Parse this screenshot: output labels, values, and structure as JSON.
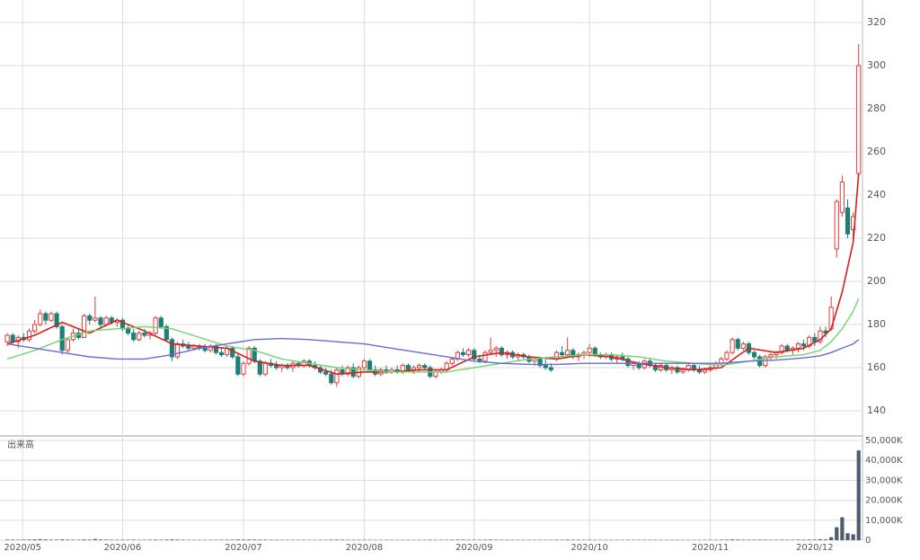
{
  "chart_data": {
    "type": "candlestick",
    "volume_label": "出来高",
    "up_color": "#e03c3c",
    "down_color": "#1f7f76",
    "volume_color": "#4d5d70",
    "grid": true,
    "xlim": [
      -0.5,
      155.7
    ],
    "xticks": [
      {
        "value": 2.8,
        "label": "2020/05"
      },
      {
        "value": 21,
        "label": "2020/06"
      },
      {
        "value": 43,
        "label": "2020/07"
      },
      {
        "value": 65,
        "label": "2020/08"
      },
      {
        "value": 85,
        "label": "2020/09"
      },
      {
        "value": 106,
        "label": "2020/10"
      },
      {
        "value": 128,
        "label": "2020/11"
      },
      {
        "value": 147,
        "label": "2020/12"
      }
    ],
    "ylim": [
      128.75,
      330.4
    ],
    "yticks": [
      140,
      160,
      180,
      200,
      220,
      240,
      260,
      280,
      300,
      320
    ],
    "volume_ylim": [
      0,
      51350
    ],
    "volume_yticks": [
      0,
      {
        "value": 10000,
        "label": "10,000K"
      },
      {
        "value": 20000,
        "label": "20,000K"
      },
      {
        "value": 30000,
        "label": "30,000K"
      },
      {
        "value": 40000,
        "label": "40,000K"
      },
      {
        "value": 50000,
        "label": "50,000K"
      }
    ],
    "ohlc": [
      [
        172,
        176,
        170,
        175
      ],
      [
        175,
        176,
        171,
        172
      ],
      [
        172,
        175,
        169,
        174
      ],
      [
        174,
        176,
        172,
        173
      ],
      [
        173,
        178,
        172,
        177
      ],
      [
        177,
        182,
        176,
        180
      ],
      [
        180,
        187,
        179,
        185
      ],
      [
        185,
        186,
        180,
        182
      ],
      [
        182,
        186,
        181,
        185
      ],
      [
        185,
        186,
        178,
        179
      ],
      [
        179,
        180,
        166,
        168
      ],
      [
        168,
        174,
        167,
        173
      ],
      [
        173,
        178,
        172,
        176
      ],
      [
        176,
        178,
        173,
        174
      ],
      [
        174,
        185,
        174,
        184
      ],
      [
        184,
        185,
        180,
        182
      ],
      [
        182,
        193,
        181,
        183
      ],
      [
        183,
        184,
        178,
        180
      ],
      [
        180,
        184,
        179,
        183
      ],
      [
        183,
        184,
        180,
        181
      ],
      [
        181,
        183,
        179,
        182
      ],
      [
        182,
        183,
        177,
        178
      ],
      [
        178,
        180,
        175,
        176
      ],
      [
        176,
        178,
        172,
        173
      ],
      [
        173,
        177,
        172,
        176
      ],
      [
        176,
        178,
        174,
        175
      ],
      [
        175,
        177,
        173,
        176
      ],
      [
        176,
        184,
        175,
        183
      ],
      [
        183,
        184,
        178,
        179
      ],
      [
        179,
        180,
        172,
        173
      ],
      [
        173,
        174,
        163,
        165
      ],
      [
        165,
        172,
        164,
        171
      ],
      [
        171,
        173,
        169,
        170
      ],
      [
        170,
        172,
        168,
        169
      ],
      [
        169,
        171,
        168,
        170
      ],
      [
        170,
        171,
        168,
        169
      ],
      [
        169,
        171,
        167,
        168
      ],
      [
        168,
        171,
        167,
        170
      ],
      [
        170,
        171,
        166,
        167
      ],
      [
        167,
        169,
        165,
        166
      ],
      [
        166,
        170,
        165,
        169
      ],
      [
        169,
        170,
        164,
        165
      ],
      [
        165,
        167,
        156,
        157
      ],
      [
        157,
        163,
        156,
        162
      ],
      [
        162,
        170,
        161,
        169
      ],
      [
        169,
        170,
        162,
        163
      ],
      [
        163,
        164,
        156,
        157
      ],
      [
        157,
        163,
        156,
        162
      ],
      [
        162,
        164,
        160,
        161
      ],
      [
        161,
        163,
        159,
        160
      ],
      [
        160,
        162,
        158,
        161
      ],
      [
        161,
        162,
        159,
        160
      ],
      [
        160,
        163,
        158,
        162
      ],
      [
        162,
        163,
        160,
        161
      ],
      [
        161,
        164,
        160,
        163
      ],
      [
        163,
        164,
        160,
        161
      ],
      [
        161,
        163,
        159,
        160
      ],
      [
        160,
        161,
        157,
        158
      ],
      [
        158,
        160,
        156,
        157
      ],
      [
        157,
        159,
        152,
        153
      ],
      [
        153,
        160,
        151,
        159
      ],
      [
        159,
        161,
        156,
        157
      ],
      [
        157,
        161,
        156,
        160
      ],
      [
        160,
        162,
        155,
        156
      ],
      [
        156,
        161,
        155,
        160
      ],
      [
        160,
        164,
        159,
        163
      ],
      [
        163,
        164,
        158,
        159
      ],
      [
        159,
        161,
        156,
        157
      ],
      [
        157,
        160,
        156,
        159
      ],
      [
        159,
        161,
        157,
        158
      ],
      [
        158,
        160,
        157,
        159
      ],
      [
        159,
        161,
        157,
        158
      ],
      [
        158,
        162,
        157,
        161
      ],
      [
        161,
        162,
        158,
        159
      ],
      [
        159,
        161,
        157,
        160
      ],
      [
        160,
        162,
        158,
        161
      ],
      [
        161,
        162,
        159,
        160
      ],
      [
        160,
        161,
        155,
        156
      ],
      [
        156,
        159,
        155,
        158
      ],
      [
        158,
        160,
        157,
        159
      ],
      [
        159,
        163,
        158,
        162
      ],
      [
        162,
        165,
        161,
        164
      ],
      [
        164,
        168,
        163,
        167
      ],
      [
        167,
        169,
        165,
        166
      ],
      [
        166,
        169,
        165,
        168
      ],
      [
        168,
        169,
        163,
        164
      ],
      [
        164,
        166,
        162,
        163
      ],
      [
        163,
        168,
        162,
        167
      ],
      [
        167,
        174,
        166,
        168
      ],
      [
        168,
        170,
        165,
        169
      ],
      [
        169,
        170,
        165,
        166
      ],
      [
        166,
        168,
        164,
        167
      ],
      [
        167,
        168,
        164,
        165
      ],
      [
        165,
        167,
        163,
        166
      ],
      [
        166,
        167,
        164,
        165
      ],
      [
        165,
        166,
        162,
        163
      ],
      [
        163,
        165,
        161,
        164
      ],
      [
        164,
        165,
        160,
        161
      ],
      [
        161,
        164,
        159,
        160
      ],
      [
        160,
        162,
        158,
        159
      ],
      [
        164,
        168,
        163,
        167
      ],
      [
        167,
        170,
        165,
        166
      ],
      [
        166,
        174,
        165,
        168
      ],
      [
        168,
        169,
        164,
        165
      ],
      [
        165,
        167,
        163,
        166
      ],
      [
        166,
        168,
        164,
        167
      ],
      [
        167,
        171,
        165,
        169
      ],
      [
        169,
        170,
        165,
        166
      ],
      [
        166,
        167,
        164,
        165
      ],
      [
        165,
        167,
        164,
        166
      ],
      [
        166,
        167,
        163,
        164
      ],
      [
        164,
        166,
        162,
        165
      ],
      [
        165,
        167,
        163,
        164
      ],
      [
        164,
        165,
        160,
        161
      ],
      [
        161,
        163,
        159,
        162
      ],
      [
        162,
        163,
        159,
        160
      ],
      [
        160,
        164,
        159,
        163
      ],
      [
        163,
        164,
        160,
        161
      ],
      [
        161,
        162,
        158,
        159
      ],
      [
        159,
        162,
        158,
        161
      ],
      [
        161,
        162,
        158,
        159
      ],
      [
        159,
        161,
        157,
        160
      ],
      [
        160,
        161,
        157,
        158
      ],
      [
        158,
        160,
        157,
        159
      ],
      [
        159,
        162,
        158,
        161
      ],
      [
        161,
        162,
        158,
        159
      ],
      [
        159,
        161,
        157,
        158
      ],
      [
        158,
        160,
        157,
        159
      ],
      [
        159,
        161,
        158,
        160
      ],
      [
        160,
        163,
        159,
        162
      ],
      [
        162,
        165,
        161,
        164
      ],
      [
        164,
        168,
        163,
        167
      ],
      [
        167,
        174,
        166,
        173
      ],
      [
        173,
        174,
        168,
        169
      ],
      [
        169,
        172,
        168,
        171
      ],
      [
        171,
        172,
        166,
        167
      ],
      [
        167,
        168,
        164,
        165
      ],
      [
        165,
        166,
        160,
        161
      ],
      [
        161,
        166,
        160,
        165
      ],
      [
        165,
        167,
        163,
        166
      ],
      [
        166,
        168,
        164,
        167
      ],
      [
        167,
        171,
        166,
        170
      ],
      [
        170,
        171,
        167,
        168
      ],
      [
        168,
        170,
        166,
        169
      ],
      [
        169,
        172,
        167,
        171
      ],
      [
        171,
        173,
        168,
        170
      ],
      [
        170,
        175,
        169,
        174
      ],
      [
        174,
        176,
        170,
        172
      ],
      [
        172,
        179,
        171,
        177
      ],
      [
        177,
        179,
        174,
        176
      ],
      [
        178,
        193,
        177,
        188
      ],
      [
        215,
        238,
        211,
        237
      ],
      [
        232,
        249,
        230,
        246
      ],
      [
        234,
        238,
        220,
        222
      ],
      [
        224,
        232,
        218,
        230
      ],
      [
        250,
        310,
        248,
        300
      ]
    ],
    "volume": [
      320,
      280,
      250,
      300,
      350,
      420,
      510,
      380,
      300,
      280,
      450,
      300,
      260,
      240,
      380,
      300,
      620,
      350,
      280,
      250,
      230,
      260,
      240,
      280,
      220,
      210,
      240,
      300,
      260,
      330,
      420,
      300,
      250,
      220,
      200,
      190,
      210,
      200,
      230,
      250,
      240,
      260,
      380,
      300,
      350,
      330,
      320,
      270,
      240,
      220,
      200,
      190,
      210,
      200,
      220,
      190,
      180,
      200,
      210,
      280,
      300,
      250,
      230,
      240,
      220,
      230,
      210,
      200,
      190,
      200,
      180,
      190,
      200,
      190,
      180,
      190,
      200,
      230,
      210,
      190,
      220,
      260,
      300,
      280,
      250,
      230,
      220,
      260,
      330,
      260,
      230,
      220,
      210,
      200,
      190,
      200,
      190,
      210,
      200,
      190,
      250,
      240,
      310,
      260,
      230,
      220,
      260,
      230,
      210,
      200,
      200,
      190,
      210,
      230,
      220,
      200,
      230,
      210,
      200,
      190,
      190,
      180,
      200,
      190,
      200,
      190,
      180,
      190,
      200,
      220,
      250,
      300,
      420,
      330,
      280,
      260,
      240,
      290,
      260,
      240,
      230,
      260,
      240,
      250,
      280,
      260,
      320,
      300,
      500,
      400,
      1500,
      6500,
      11500,
      3500,
      3000,
      45000
    ],
    "ma_x": [
      0,
      5,
      10,
      15,
      20,
      25,
      30,
      35,
      40,
      45,
      50,
      55,
      60,
      65,
      70,
      75,
      80,
      85,
      90,
      95,
      100,
      105,
      110,
      115,
      120,
      125,
      130,
      135,
      140,
      145,
      148,
      150,
      152,
      154,
      155
    ],
    "ma": [
      {
        "color": "#d42020",
        "values": [
          171,
          175,
          181,
          176,
          182,
          177,
          171,
          170,
          169,
          163,
          161,
          161,
          157,
          158,
          158,
          159,
          159,
          165,
          167,
          165,
          164,
          166,
          165,
          162,
          160,
          159,
          160,
          169,
          167,
          169,
          173,
          178,
          195,
          218,
          250
        ]
      },
      {
        "color": "#6fd66f",
        "values": [
          164,
          168,
          173,
          177,
          178,
          179,
          178,
          174,
          170,
          168,
          164,
          162,
          160,
          159,
          158,
          158,
          158,
          160,
          162,
          164,
          165,
          166,
          166,
          165,
          163,
          162,
          161,
          163,
          165,
          166,
          168,
          172,
          178,
          186,
          192
        ]
      },
      {
        "color": "#6a6ad8",
        "values": [
          171,
          169,
          167,
          165,
          164,
          164,
          166,
          169,
          171,
          173,
          173.5,
          173,
          172,
          171,
          169,
          167,
          165,
          163,
          162,
          161.5,
          161.5,
          162,
          162,
          162,
          162,
          162,
          162,
          163,
          163.5,
          164.5,
          165.5,
          167,
          169,
          171,
          173
        ]
      }
    ]
  }
}
